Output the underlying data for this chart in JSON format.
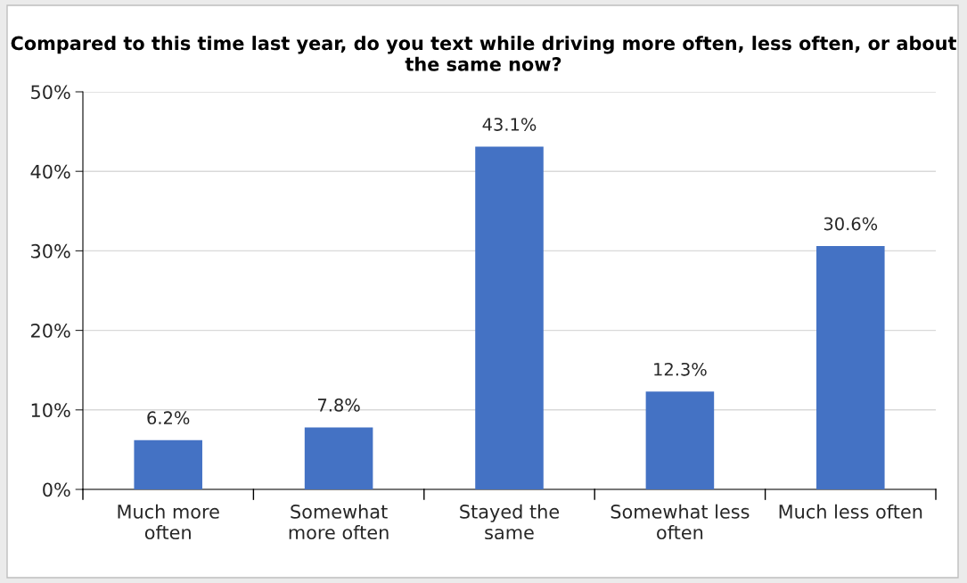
{
  "chart_data": {
    "type": "bar",
    "title": "Compared to this time last year, do you text while driving more often, less often, or about the same now?",
    "categories": [
      "Much more\noften",
      "Somewhat\nmore often",
      "Stayed the\nsame",
      "Somewhat less\noften",
      "Much less often"
    ],
    "values": [
      6.2,
      7.8,
      43.1,
      12.3,
      30.6
    ],
    "value_labels": [
      "6.2%",
      "7.8%",
      "43.1%",
      "12.3%",
      "30.6%"
    ],
    "color": "#4472c4",
    "ylim": [
      0,
      50
    ],
    "yticks": [
      {
        "value": 0,
        "label": "0%"
      },
      {
        "value": 10,
        "label": "10%"
      },
      {
        "value": 20,
        "label": "20%"
      },
      {
        "value": 30,
        "label": "30%"
      },
      {
        "value": 40,
        "label": "40%"
      },
      {
        "value": 50,
        "label": "50%"
      }
    ],
    "grid": "y"
  }
}
